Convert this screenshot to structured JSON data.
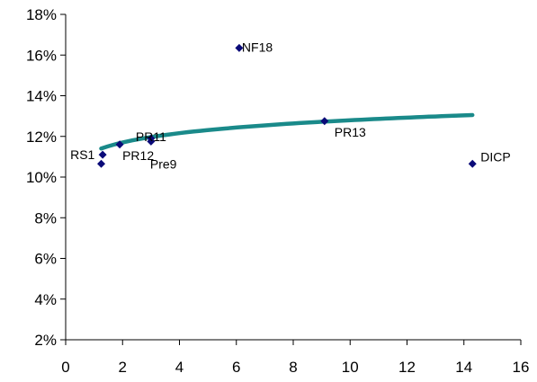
{
  "chart_data": {
    "type": "scatter",
    "title": "",
    "xlabel": "",
    "ylabel": "",
    "xlim": [
      0,
      16
    ],
    "ylim": [
      0.02,
      0.18
    ],
    "x_ticks": [
      0,
      2,
      4,
      6,
      8,
      10,
      12,
      14,
      16
    ],
    "x_tick_labels": [
      "0",
      "2",
      "4",
      "6",
      "8",
      "10",
      "12",
      "14",
      "16"
    ],
    "y_ticks": [
      0.02,
      0.04,
      0.06,
      0.08,
      0.1,
      0.12,
      0.14,
      0.16,
      0.18
    ],
    "y_tick_labels": [
      "2%",
      "4%",
      "6%",
      "8%",
      "10%",
      "12%",
      "14%",
      "16%",
      "18%"
    ],
    "grid": false,
    "legend": "none",
    "points": [
      {
        "label": "RS1",
        "x": 1.3,
        "y": 0.111
      },
      {
        "label": "",
        "x": 1.25,
        "y": 0.1065
      },
      {
        "label": "PR12",
        "x": 1.9,
        "y": 0.116
      },
      {
        "label": "PR11",
        "x": 3.0,
        "y": 0.119
      },
      {
        "label": "Pre9",
        "x": 3.0,
        "y": 0.1175
      },
      {
        "label": "NF18",
        "x": 6.1,
        "y": 0.1635
      },
      {
        "label": "PR13",
        "x": 9.1,
        "y": 0.1275
      },
      {
        "label": "DICP",
        "x": 14.3,
        "y": 0.1065
      }
    ],
    "trendline": {
      "type": "power",
      "x_range": [
        1.25,
        14.3
      ],
      "y_at_start": 0.114,
      "y_at_end": 0.1305
    },
    "colors": {
      "marker": "#0a0a78",
      "trendline": "#1a8a8a",
      "axis": "#000000"
    }
  }
}
